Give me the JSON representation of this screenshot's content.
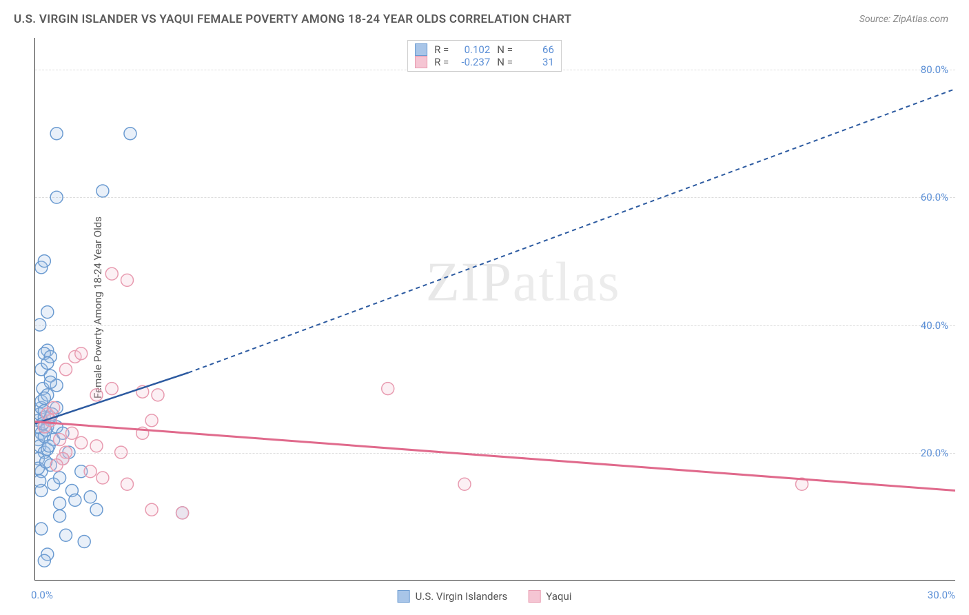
{
  "title": "U.S. VIRGIN ISLANDER VS YAQUI FEMALE POVERTY AMONG 18-24 YEAR OLDS CORRELATION CHART",
  "source_label": "Source: ",
  "source_value": "ZipAtlas.com",
  "y_axis_label": "Female Poverty Among 18-24 Year Olds",
  "watermark_zip": "ZIP",
  "watermark_atlas": "atlas",
  "chart": {
    "type": "scatter",
    "xlim": [
      0,
      30
    ],
    "ylim": [
      0,
      85
    ],
    "x_ticks": [
      {
        "pos": 0,
        "label": "0.0%"
      },
      {
        "pos": 30,
        "label": "30.0%"
      }
    ],
    "y_ticks": [
      {
        "pos": 20,
        "label": "20.0%"
      },
      {
        "pos": 40,
        "label": "40.0%"
      },
      {
        "pos": 60,
        "label": "60.0%"
      },
      {
        "pos": 80,
        "label": "80.0%"
      }
    ],
    "grid_color": "#dddddd",
    "background_color": "#ffffff",
    "marker_radius": 9,
    "marker_stroke_width": 1.5,
    "marker_fill_opacity": 0.25,
    "series": [
      {
        "name": "U.S. Virgin Islanders",
        "color_stroke": "#6b9bd1",
        "color_fill": "#a8c5e8",
        "R": "0.102",
        "N": "66",
        "trend": {
          "solid": {
            "x1": 0,
            "y1": 24.5,
            "x2": 5,
            "y2": 32.5
          },
          "dashed": {
            "x1": 5,
            "y1": 32.5,
            "x2": 30,
            "y2": 77
          },
          "color": "#2c5aa0",
          "width": 2.5,
          "dash": "6,5"
        },
        "points": [
          [
            0.1,
            25
          ],
          [
            0.1,
            24
          ],
          [
            0.15,
            26
          ],
          [
            0.2,
            23
          ],
          [
            0.2,
            27
          ],
          [
            0.1,
            22
          ],
          [
            0.3,
            25.5
          ],
          [
            0.2,
            28
          ],
          [
            0.15,
            21
          ],
          [
            0.3,
            20
          ],
          [
            0.1,
            19
          ],
          [
            0.25,
            30
          ],
          [
            0.4,
            24
          ],
          [
            0.3,
            26.5
          ],
          [
            0.5,
            18
          ],
          [
            0.2,
            17
          ],
          [
            0.8,
            10
          ],
          [
            0.6,
            15
          ],
          [
            0.4,
            36
          ],
          [
            0.3,
            35.5
          ],
          [
            0.5,
            35
          ],
          [
            0.15,
            40
          ],
          [
            0.4,
            42
          ],
          [
            0.2,
            49
          ],
          [
            0.3,
            50
          ],
          [
            0.7,
            60
          ],
          [
            2.2,
            61
          ],
          [
            0.7,
            70
          ],
          [
            3.1,
            70
          ],
          [
            0.2,
            14
          ],
          [
            1.0,
            7
          ],
          [
            1.6,
            6
          ],
          [
            1.2,
            14
          ],
          [
            0.4,
            4
          ],
          [
            0.3,
            3
          ],
          [
            1.5,
            17
          ],
          [
            1.8,
            13
          ],
          [
            0.2,
            33
          ],
          [
            0.5,
            32
          ],
          [
            0.3,
            22.5
          ],
          [
            0.35,
            23.5
          ],
          [
            0.4,
            20.5
          ],
          [
            0.1,
            17.5
          ],
          [
            0.5,
            25.5
          ],
          [
            0.7,
            24
          ],
          [
            0.15,
            15.5
          ],
          [
            0.9,
            19
          ],
          [
            0.6,
            22
          ],
          [
            0.7,
            27
          ],
          [
            0.4,
            29
          ],
          [
            0.55,
            26
          ],
          [
            0.35,
            18.5
          ],
          [
            0.8,
            16
          ],
          [
            0.25,
            24.5
          ],
          [
            0.45,
            21
          ],
          [
            0.3,
            28.5
          ],
          [
            0.7,
            30.5
          ],
          [
            0.9,
            23
          ],
          [
            1.1,
            20
          ],
          [
            0.5,
            31
          ],
          [
            0.4,
            34
          ],
          [
            4.8,
            10.5
          ],
          [
            0.8,
            12
          ],
          [
            1.3,
            12.5
          ],
          [
            2.0,
            11
          ],
          [
            0.2,
            8
          ]
        ]
      },
      {
        "name": "Yaqui",
        "color_stroke": "#e89bb0",
        "color_fill": "#f5c5d3",
        "R": "-0.237",
        "N": "31",
        "trend": {
          "solid": {
            "x1": 0,
            "y1": 24.8,
            "x2": 30,
            "y2": 14
          },
          "color": "#e06a8c",
          "width": 3
        },
        "points": [
          [
            0.3,
            24
          ],
          [
            0.5,
            25
          ],
          [
            0.8,
            22
          ],
          [
            1.0,
            20
          ],
          [
            0.4,
            26
          ],
          [
            1.2,
            23
          ],
          [
            0.6,
            27
          ],
          [
            1.5,
            21.5
          ],
          [
            0.9,
            19
          ],
          [
            1.3,
            35
          ],
          [
            1.5,
            35.5
          ],
          [
            2.5,
            48
          ],
          [
            3.0,
            47
          ],
          [
            2.0,
            29
          ],
          [
            2.5,
            30
          ],
          [
            3.5,
            29.5
          ],
          [
            3.8,
            25
          ],
          [
            3.5,
            23
          ],
          [
            4.0,
            29
          ],
          [
            2.8,
            20
          ],
          [
            1.8,
            17
          ],
          [
            2.2,
            16
          ],
          [
            3.0,
            15
          ],
          [
            3.8,
            11
          ],
          [
            11.5,
            30
          ],
          [
            14.0,
            15
          ],
          [
            25.0,
            15
          ],
          [
            0.7,
            18
          ],
          [
            4.8,
            10.5
          ],
          [
            1.0,
            33
          ],
          [
            2.0,
            21
          ]
        ]
      }
    ]
  },
  "legend": {
    "series1_label": "U.S. Virgin Islanders",
    "series2_label": "Yaqui"
  },
  "stats_labels": {
    "R": "R =",
    "N": "N ="
  }
}
